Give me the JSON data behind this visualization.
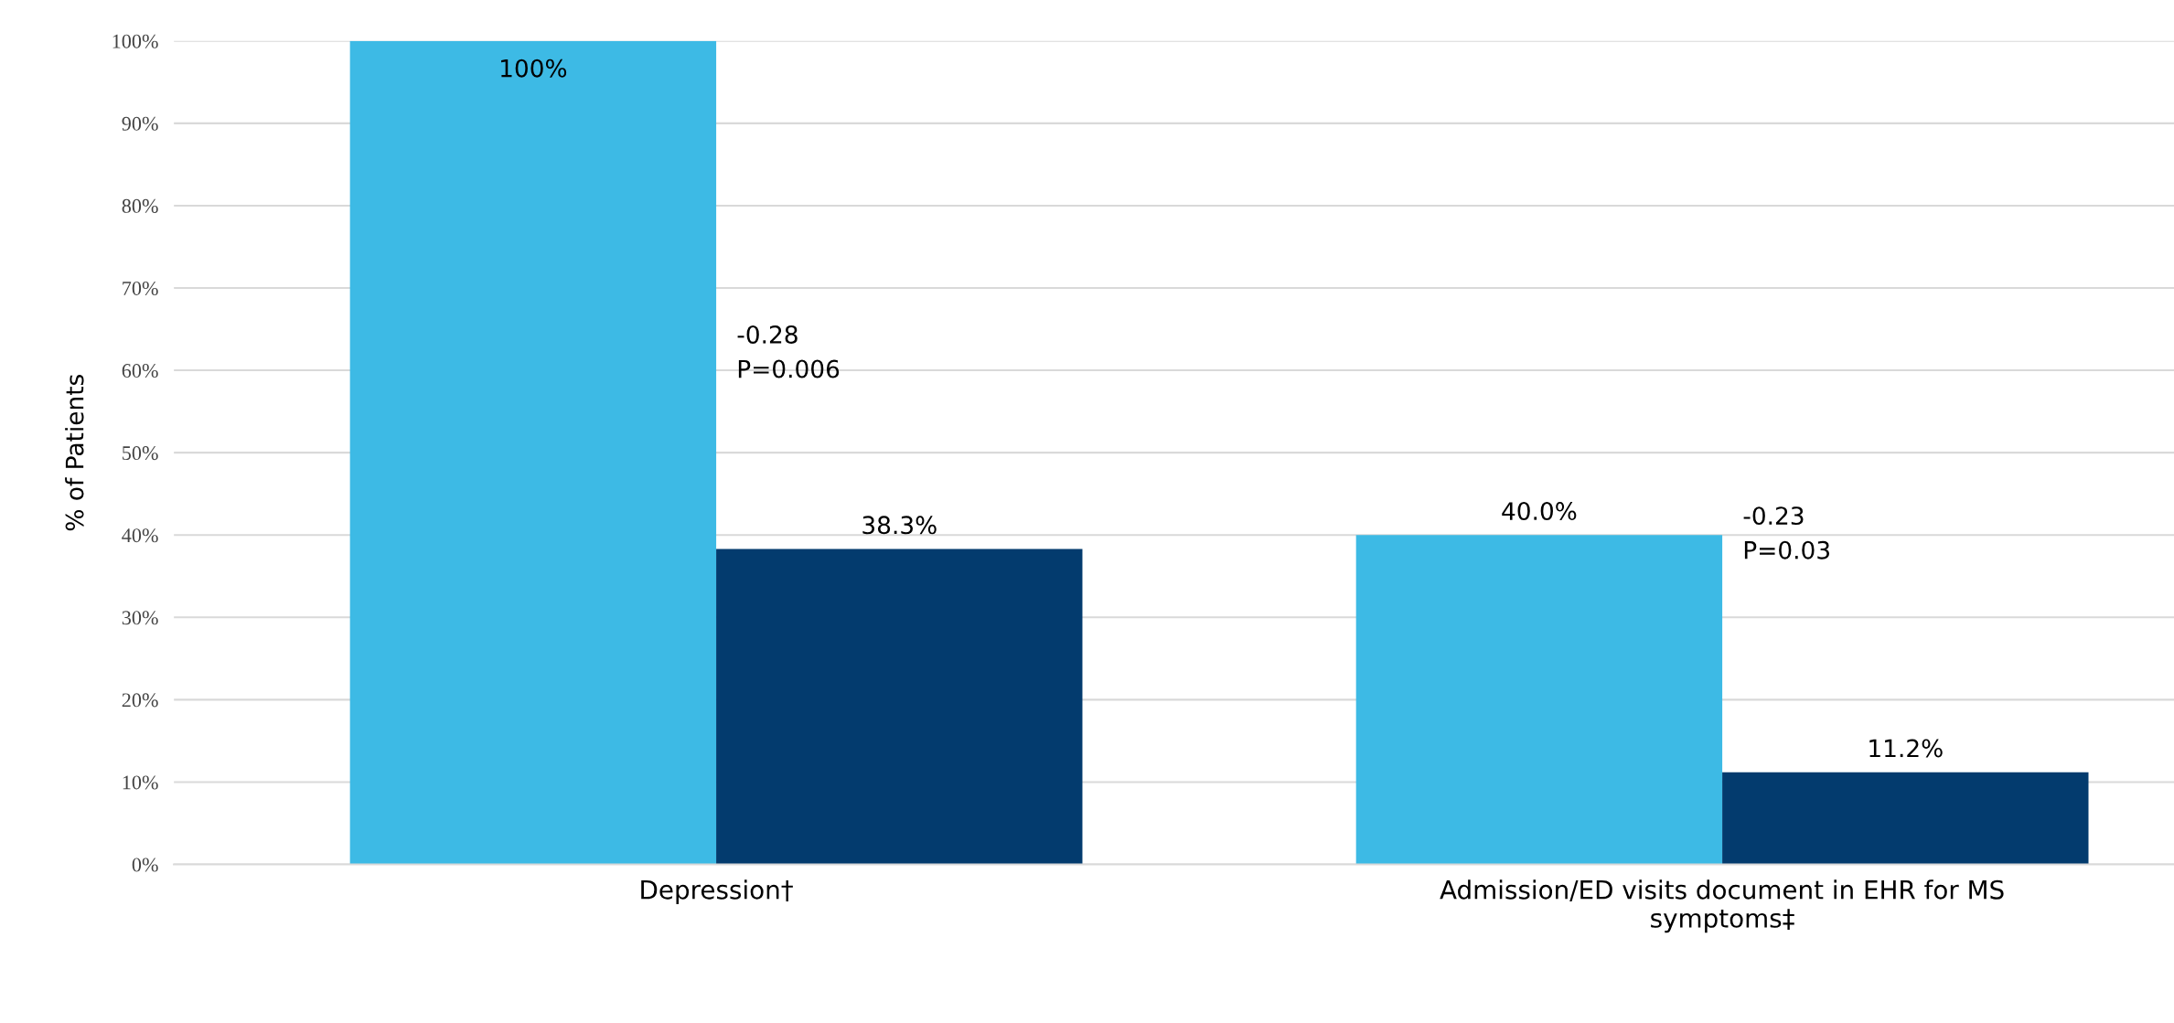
{
  "chart_data": {
    "type": "bar",
    "ylabel": "% of Patients",
    "categories": [
      "Depression†",
      "Admission/ED visits document in EHR for MS symptoms‡"
    ],
    "series": [
      {
        "color": "#3dbae5",
        "values": [
          100,
          40.0
        ],
        "value_labels": [
          "100%",
          "40.0%"
        ]
      },
      {
        "color": "#033b6e",
        "values": [
          38.3,
          11.2
        ],
        "value_labels": [
          "38.3%",
          "11.2%"
        ]
      }
    ],
    "ylim": [
      0,
      100
    ],
    "yticks": [
      {
        "value": 0,
        "label": "0%"
      },
      {
        "value": 10,
        "label": "10%"
      },
      {
        "value": 20,
        "label": "20%"
      },
      {
        "value": 30,
        "label": "30%"
      },
      {
        "value": 40,
        "label": "40%"
      },
      {
        "value": 50,
        "label": "50%"
      },
      {
        "value": 60,
        "label": "60%"
      },
      {
        "value": 70,
        "label": "70%"
      },
      {
        "value": 80,
        "label": "80%"
      },
      {
        "value": 90,
        "label": "90%"
      },
      {
        "value": 100,
        "label": "100%"
      }
    ],
    "grid": "y",
    "annotations": [
      {
        "text": "-0.28\nP=0.006",
        "x": "Depression†",
        "y": 62
      },
      {
        "text": "-0.23\nP=0.03",
        "x": "Admission/ED visits document in EHR for MS symptoms‡",
        "y": 40
      }
    ]
  }
}
